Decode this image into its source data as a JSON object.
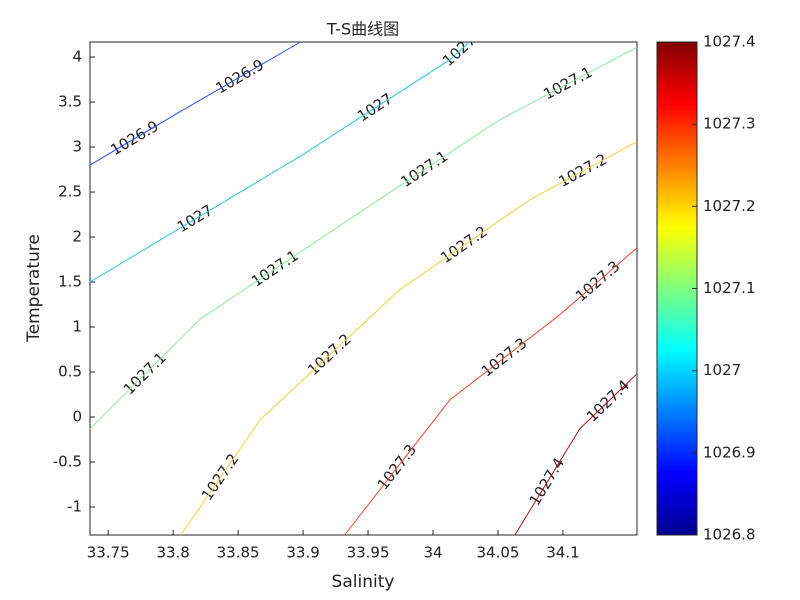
{
  "chart_data": {
    "type": "contour",
    "title": "T-S曲线图",
    "xlabel": "Salinity",
    "ylabel": "Temperature",
    "xlim": [
      33.736,
      34.157
    ],
    "ylim": [
      -1.311,
      4.167
    ],
    "xticks": [
      33.75,
      33.8,
      33.85,
      33.9,
      33.95,
      34,
      34.05,
      34.1
    ],
    "yticks": [
      -1,
      -0.5,
      0,
      0.5,
      1,
      1.5,
      2,
      2.5,
      3,
      3.5,
      4
    ],
    "clim": [
      1026.8,
      1027.4
    ],
    "cticks": [
      1026.8,
      1026.9,
      1027,
      1027.1,
      1027.2,
      1027.3,
      1027.4
    ],
    "series": [
      {
        "level": 1026.9,
        "color": "#2a4cf0",
        "x": [
          33.736,
          33.805,
          33.898
        ],
        "y": [
          2.8,
          3.39,
          4.167
        ]
      },
      {
        "level": 1027,
        "color": "#2cc6e0",
        "x": [
          33.736,
          33.898,
          34.013,
          34.028
        ],
        "y": [
          1.5,
          2.9,
          3.97,
          4.167
        ]
      },
      {
        "level": 1027.1,
        "color": "#8ee89a",
        "x": [
          33.736,
          33.821,
          33.936,
          34.051,
          34.157
        ],
        "y": [
          -0.13,
          1.09,
          2.2,
          3.3,
          4.11
        ]
      },
      {
        "level": 1027.2,
        "color": "#f2cf3a",
        "x": [
          33.806,
          33.867,
          33.974,
          34.074,
          34.157
        ],
        "y": [
          -1.311,
          -0.03,
          1.41,
          2.41,
          3.06
        ]
      },
      {
        "level": 1027.3,
        "color": "#ee4a2c",
        "x": [
          33.932,
          34.013,
          34.097,
          34.157
        ],
        "y": [
          -1.311,
          0.19,
          1.13,
          1.88
        ]
      },
      {
        "level": 1027.4,
        "color": "#b01414",
        "x": [
          34.063,
          34.113,
          34.157
        ],
        "y": [
          -1.311,
          -0.13,
          0.48
        ]
      }
    ]
  }
}
